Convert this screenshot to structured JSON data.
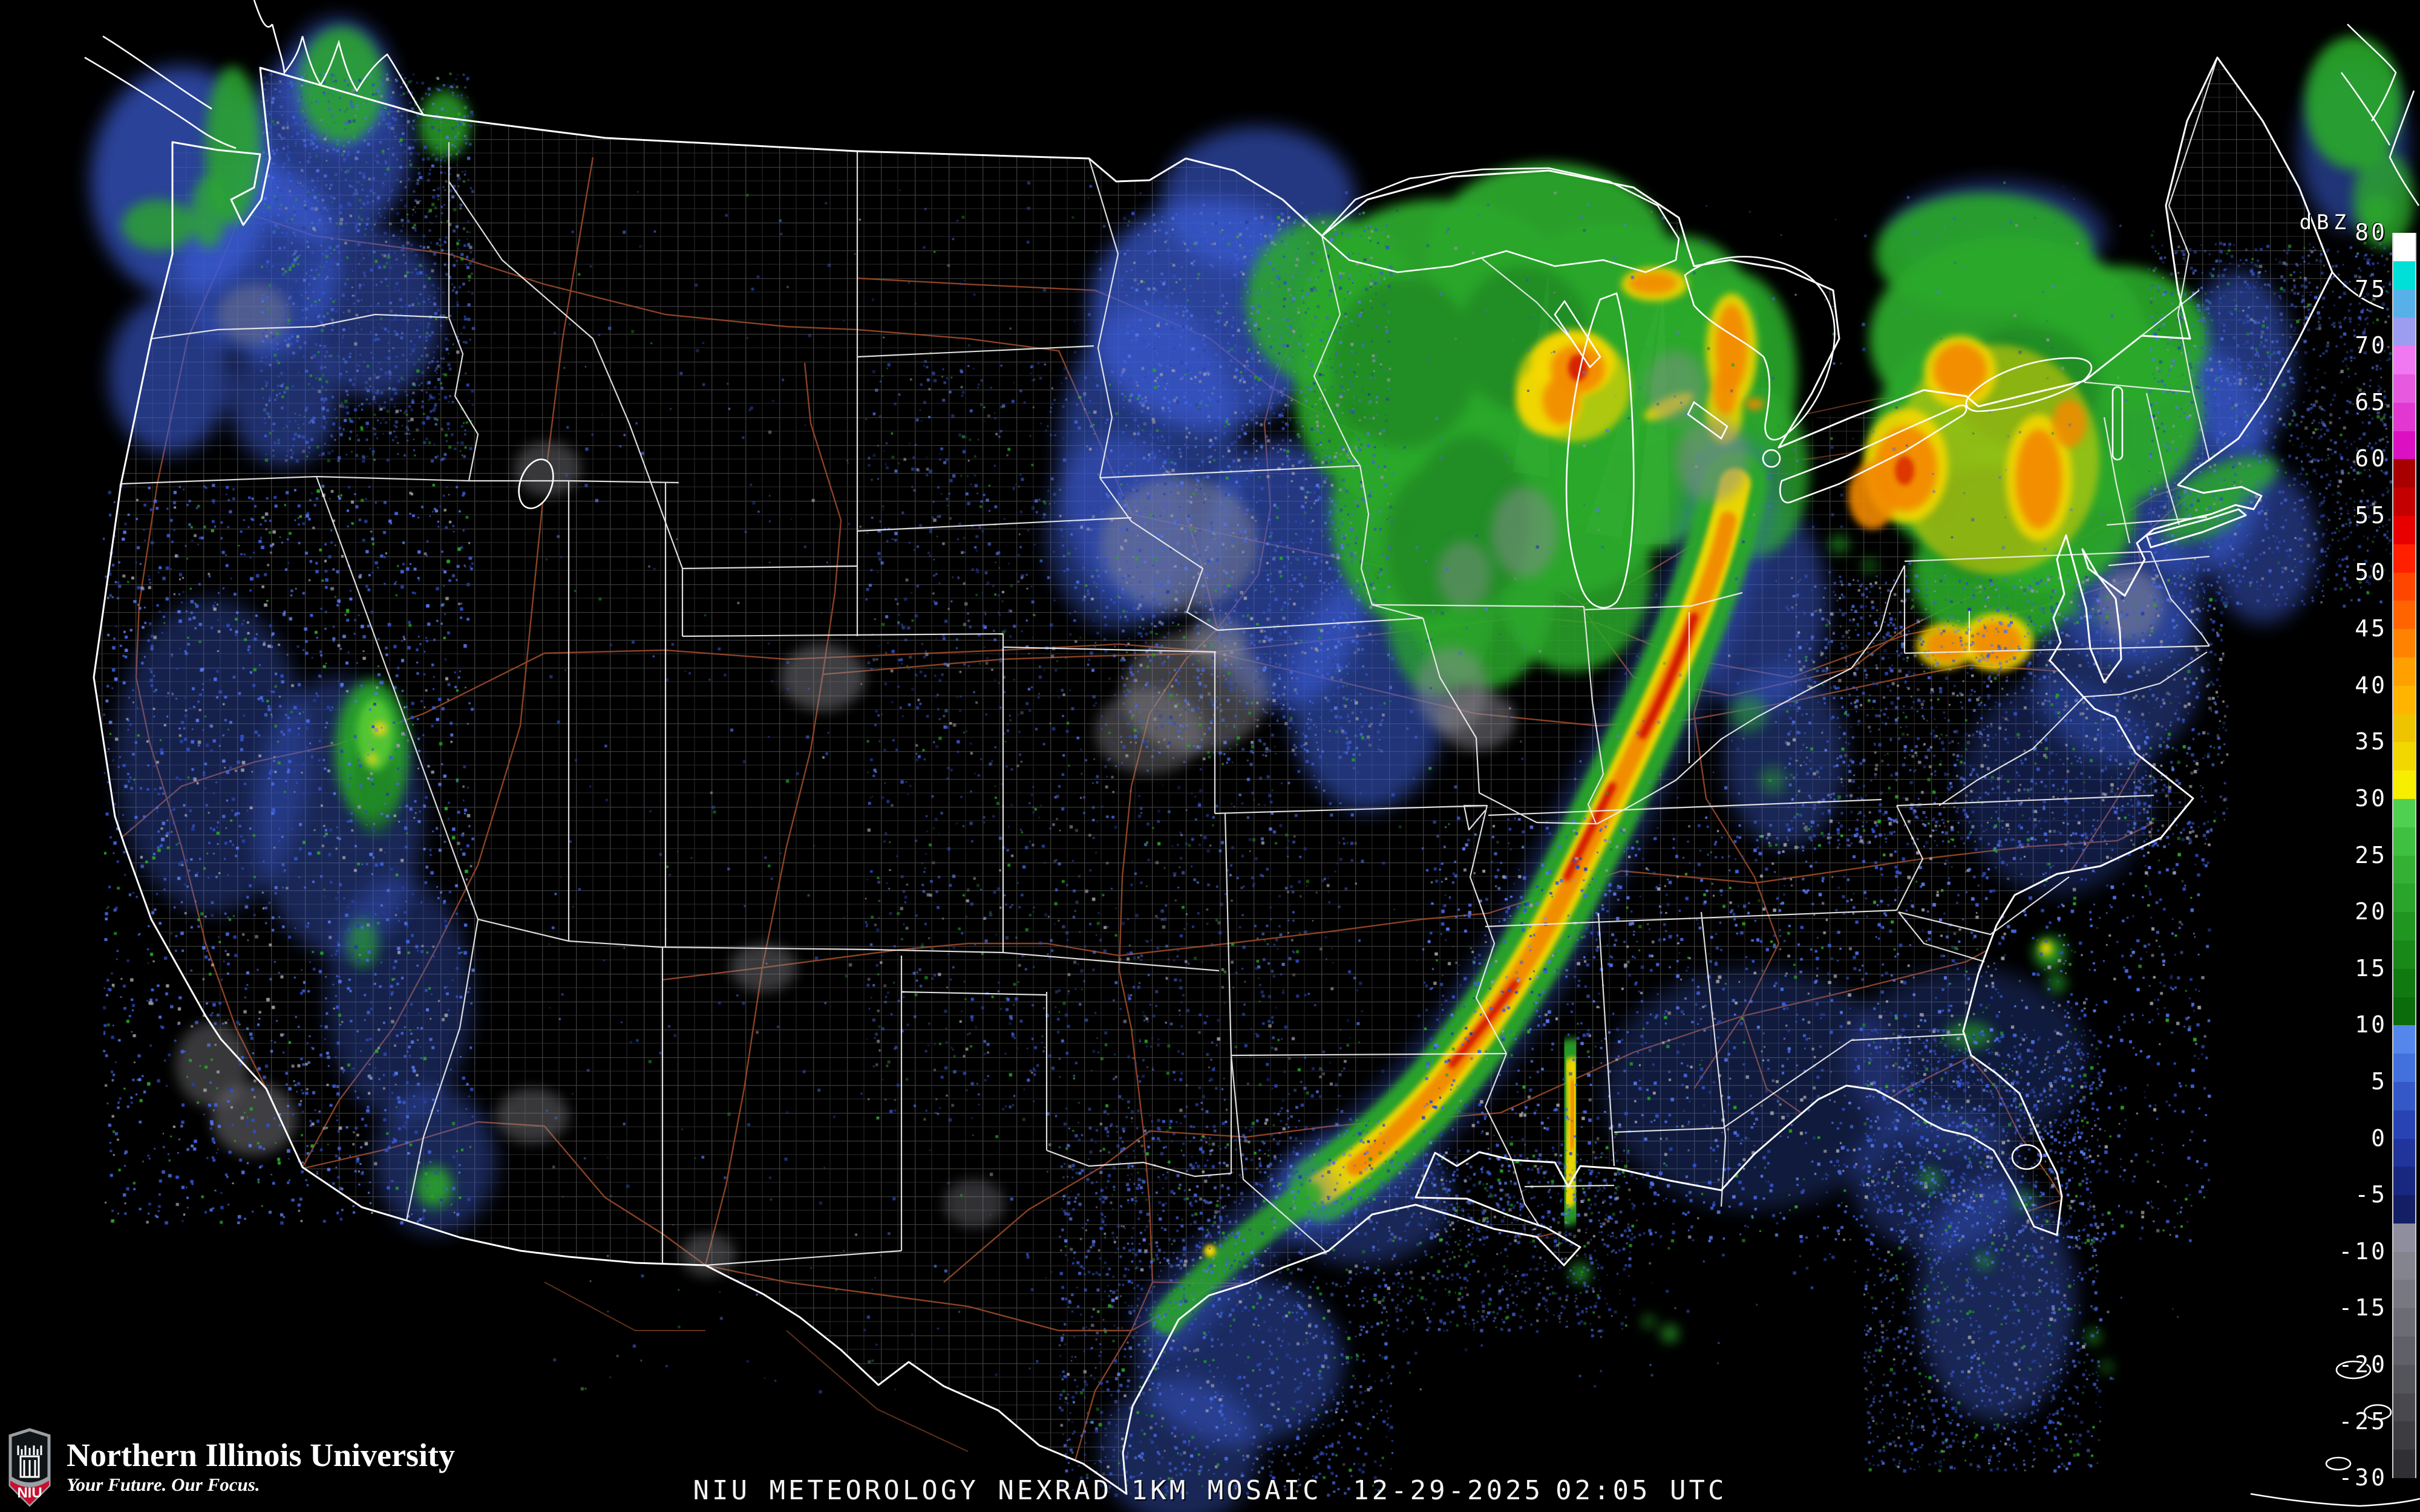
{
  "caption": {
    "product": "NIU METEOROLOGY NEXRAD 1KM MOSAIC",
    "date": "12-29-2025",
    "time": "02:05 UTC"
  },
  "branding": {
    "org": "Northern Illinois University",
    "tagline": "Your Future. Our Focus.",
    "monogram": "NIU"
  },
  "colorbar": {
    "unit": "dBZ",
    "max": 80,
    "min": -30,
    "tick_step": 5,
    "ticks": [
      80,
      75,
      70,
      65,
      60,
      55,
      50,
      45,
      40,
      35,
      30,
      25,
      20,
      15,
      10,
      5,
      0,
      -5,
      -10,
      -15,
      -20,
      -25,
      -30
    ],
    "colors": [
      "#ffffff",
      "#00e0d8",
      "#58b0e8",
      "#9c9cf0",
      "#f078f0",
      "#e65ae0",
      "#e238d2",
      "#da10c2",
      "#a80000",
      "#c40000",
      "#e80000",
      "#ff2000",
      "#ff4600",
      "#ff6400",
      "#ff8200",
      "#ffa000",
      "#ffb400",
      "#eec400",
      "#f2d800",
      "#f8ee00",
      "#50d050",
      "#40c040",
      "#34b034",
      "#2aa42a",
      "#209620",
      "#188818",
      "#107a10",
      "#0a6c0a",
      "#5486ec",
      "#4270dc",
      "#3458c8",
      "#2844b4",
      "#20349c",
      "#182880",
      "#141e64",
      "#8e8e9e",
      "#84848f",
      "#787882",
      "#6c6c75",
      "#606068",
      "#54545b",
      "#48484e",
      "#3c3c41",
      "#303034"
    ]
  },
  "legend_colors": {
    "state_border": "#f0f0f0",
    "county_line": "#3e3e3e",
    "highway": "#9b4a28",
    "light_rain": "#3c5ed8",
    "moderate_rain": "#2aa82a",
    "heavy_rain": "#f5d800",
    "intense_rain": "#f28a00",
    "extreme_rain": "#d41800"
  }
}
